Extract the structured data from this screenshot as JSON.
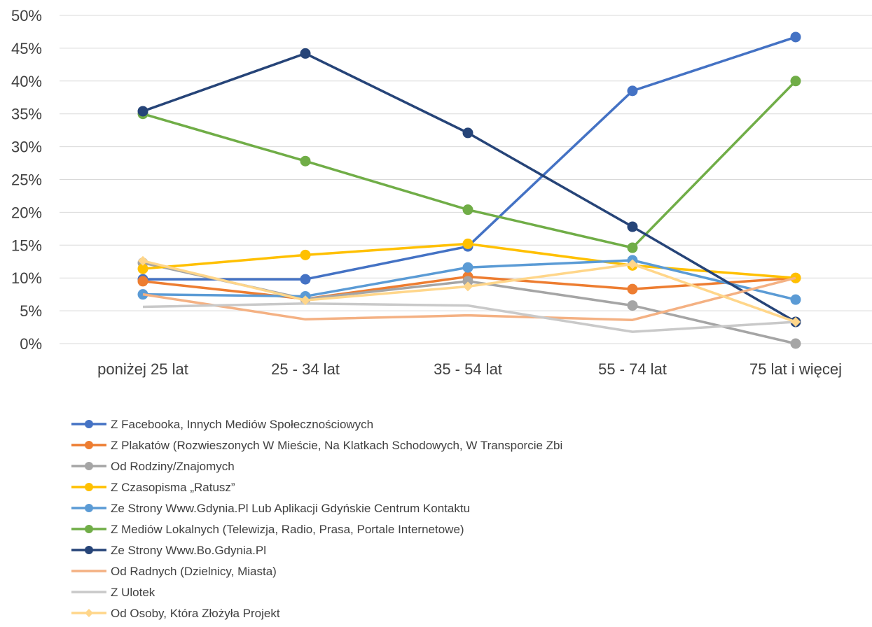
{
  "chart_data": {
    "type": "line",
    "categories": [
      "poniżej 25 lat",
      "25 - 34 lat",
      "35 - 54 lat",
      "55 - 74 lat",
      "75 lat i więcej"
    ],
    "ylim": [
      0,
      50
    ],
    "yticks": [
      "0%",
      "5%",
      "10%",
      "15%",
      "20%",
      "25%",
      "30%",
      "35%",
      "40%",
      "45%",
      "50%"
    ],
    "grid": true,
    "legend_position": "bottom",
    "series": [
      {
        "name": "Z Facebooka, Innych Mediów Społecznościowych",
        "color": "#4472C4",
        "marker": "circle",
        "values": [
          9.8,
          9.8,
          14.8,
          38.5,
          46.7
        ]
      },
      {
        "name": "Z Plakatów (Rozwieszonych W Mieście, Na Klatkach Schodowych, W Transporcie Zbi",
        "color": "#ED7D31",
        "marker": "circle",
        "values": [
          9.5,
          6.8,
          10.2,
          8.3,
          10.0
        ]
      },
      {
        "name": "Od Rodziny/Znajomych",
        "color": "#A5A5A5",
        "marker": "circle",
        "values": [
          12.3,
          6.8,
          9.5,
          5.8,
          0.0
        ]
      },
      {
        "name": "Z Czasopisma „Ratusz”",
        "color": "#FFC000",
        "marker": "circle",
        "values": [
          11.4,
          13.5,
          15.2,
          11.9,
          10.0
        ]
      },
      {
        "name": "Ze Strony Www.Gdynia.Pl Lub Aplikacji Gdyńskie Centrum Kontaktu",
        "color": "#5B9BD5",
        "marker": "circle",
        "values": [
          7.5,
          7.2,
          11.6,
          12.7,
          6.7
        ]
      },
      {
        "name": "Z Mediów Lokalnych (Telewizja, Radio, Prasa, Portale Internetowe)",
        "color": "#70AD47",
        "marker": "circle",
        "values": [
          35.0,
          27.8,
          20.4,
          14.6,
          40.0
        ]
      },
      {
        "name": "Ze Strony Www.Bo.Gdynia.Pl",
        "color": "#264478",
        "marker": "circle",
        "values": [
          35.4,
          44.2,
          32.1,
          17.8,
          3.3
        ]
      },
      {
        "name": "Od Radnych (Dzielnicy, Miasta)",
        "color": "#F4B183",
        "marker": "none",
        "values": [
          7.5,
          3.7,
          4.3,
          3.6,
          10.0
        ]
      },
      {
        "name": "Z Ulotek",
        "color": "#C9C9C9",
        "marker": "none",
        "values": [
          5.6,
          6.1,
          5.8,
          1.8,
          3.3
        ]
      },
      {
        "name": "Od Osoby, Która Złożyła Projekt",
        "color": "#FFD68A",
        "marker": "diamond",
        "values": [
          12.6,
          6.6,
          8.7,
          12.1,
          3.3
        ]
      }
    ]
  }
}
